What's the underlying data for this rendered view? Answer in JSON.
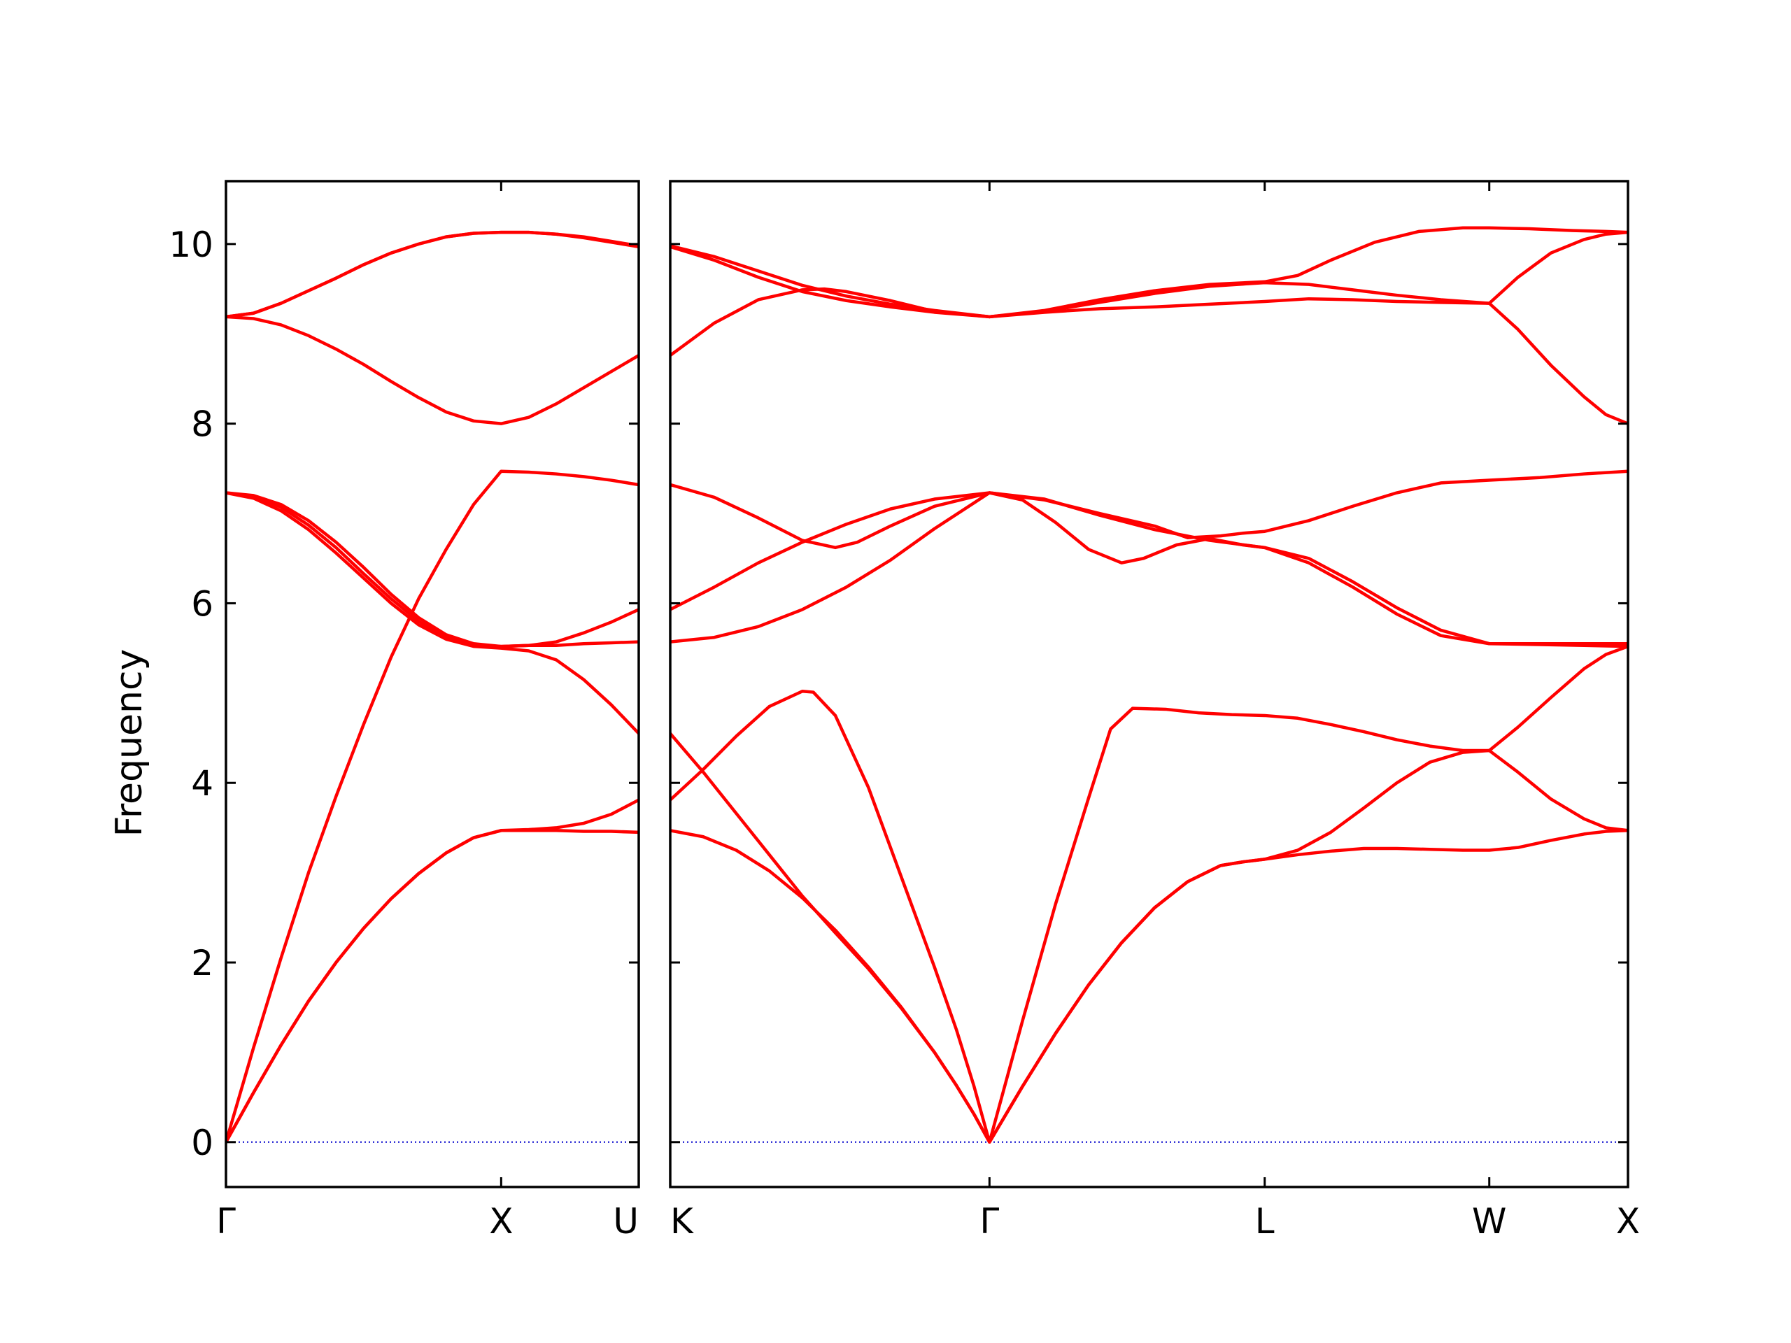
{
  "chart_data": {
    "type": "line",
    "ylabel": "Frequency",
    "ylim": [
      -0.5,
      10.7
    ],
    "yticks": [
      0,
      2,
      4,
      6,
      8,
      10
    ],
    "colors": {
      "bands": "#ff0000",
      "zero_line": "#0000cc",
      "frame": "#000000"
    },
    "grid": false,
    "legend": "none",
    "panels": [
      {
        "name": "Γ-X-U",
        "path_length": 1.5,
        "ticks": [
          {
            "x": 0,
            "label": "Γ"
          },
          {
            "x": 1.0,
            "label": "X"
          },
          {
            "x": 1.5,
            "label": "U"
          }
        ],
        "bands": [
          {
            "x": [
              0,
              0.1,
              0.2,
              0.3,
              0.4,
              0.5,
              0.6,
              0.7,
              0.8,
              0.9,
              1.0,
              1.1,
              1.2,
              1.3,
              1.4,
              1.5
            ],
            "y": [
              0,
              0.55,
              1.08,
              1.57,
              2.0,
              2.38,
              2.71,
              2.99,
              3.22,
              3.39,
              3.47,
              3.48,
              3.5,
              3.55,
              3.65,
              3.81
            ]
          },
          {
            "x": [
              0,
              0.1,
              0.2,
              0.3,
              0.4,
              0.5,
              0.6,
              0.7,
              0.8,
              0.9,
              1.0,
              1.1,
              1.2,
              1.3,
              1.4,
              1.5
            ],
            "y": [
              0,
              0.55,
              1.08,
              1.57,
              2.0,
              2.38,
              2.71,
              2.99,
              3.22,
              3.39,
              3.47,
              3.47,
              3.47,
              3.46,
              3.46,
              3.45
            ]
          },
          {
            "x": [
              0,
              0.1,
              0.2,
              0.3,
              0.4,
              0.5,
              0.6,
              0.7,
              0.8,
              0.9,
              1.0,
              1.1,
              1.2,
              1.3,
              1.4,
              1.5
            ],
            "y": [
              0,
              1.05,
              2.05,
              3.0,
              3.85,
              4.65,
              5.4,
              6.05,
              6.6,
              7.1,
              7.47,
              7.46,
              7.44,
              7.41,
              7.37,
              7.32
            ]
          },
          {
            "x": [
              0,
              0.1,
              0.2,
              0.3,
              0.4,
              0.5,
              0.6,
              0.7,
              0.8,
              0.9,
              1.0,
              1.1,
              1.2,
              1.3,
              1.4,
              1.5
            ],
            "y": [
              7.23,
              7.17,
              7.03,
              6.82,
              6.56,
              6.28,
              6.0,
              5.76,
              5.6,
              5.52,
              5.5,
              5.47,
              5.37,
              5.15,
              4.87,
              4.55
            ]
          },
          {
            "x": [
              0,
              0.1,
              0.2,
              0.3,
              0.4,
              0.5,
              0.6,
              0.7,
              0.8,
              0.9,
              1.0,
              1.1,
              1.2,
              1.3,
              1.4,
              1.5
            ],
            "y": [
              7.23,
              7.19,
              7.07,
              6.87,
              6.62,
              6.33,
              6.05,
              5.8,
              5.62,
              5.53,
              5.52,
              5.53,
              5.53,
              5.55,
              5.56,
              5.57
            ]
          },
          {
            "x": [
              0,
              0.1,
              0.2,
              0.3,
              0.4,
              0.5,
              0.6,
              0.7,
              0.8,
              0.9,
              1.0,
              1.1,
              1.2,
              1.3,
              1.4,
              1.5
            ],
            "y": [
              7.23,
              7.2,
              7.1,
              6.92,
              6.68,
              6.4,
              6.1,
              5.84,
              5.65,
              5.55,
              5.52,
              5.53,
              5.57,
              5.67,
              5.79,
              5.93
            ]
          },
          {
            "x": [
              0,
              0.1,
              0.2,
              0.3,
              0.4,
              0.5,
              0.6,
              0.7,
              0.8,
              0.9,
              1.0,
              1.1,
              1.2,
              1.3,
              1.4,
              1.5
            ],
            "y": [
              9.19,
              9.17,
              9.1,
              8.98,
              8.83,
              8.66,
              8.47,
              8.29,
              8.13,
              8.03,
              8.0,
              8.07,
              8.22,
              8.4,
              8.58,
              8.76
            ]
          },
          {
            "x": [
              0,
              0.1,
              0.2,
              0.3,
              0.4,
              0.5,
              0.6,
              0.7,
              0.8,
              0.9,
              1.0,
              1.1,
              1.2,
              1.3,
              1.4,
              1.5
            ],
            "y": [
              9.19,
              9.23,
              9.34,
              9.48,
              9.62,
              9.77,
              9.9,
              10.0,
              10.08,
              10.12,
              10.13,
              10.13,
              10.11,
              10.07,
              10.02,
              9.97
            ]
          },
          {
            "x": [
              0,
              0.1,
              0.2,
              0.3,
              0.4,
              0.5,
              0.6,
              0.7,
              0.8,
              0.9,
              1.0,
              1.1,
              1.2,
              1.3,
              1.4,
              1.5
            ],
            "y": [
              9.19,
              9.23,
              9.34,
              9.48,
              9.62,
              9.77,
              9.9,
              10.0,
              10.08,
              10.12,
              10.13,
              10.13,
              10.11,
              10.08,
              10.03,
              9.98
            ]
          }
        ]
      },
      {
        "name": "K-Γ-L-W-X",
        "path_length": 4.35,
        "ticks": [
          {
            "x": 0,
            "label": "K"
          },
          {
            "x": 1.45,
            "label": "Γ"
          },
          {
            "x": 2.7,
            "label": "L"
          },
          {
            "x": 3.72,
            "label": "W"
          },
          {
            "x": 4.35,
            "label": "X"
          }
        ],
        "bands": [
          {
            "x": [
              0,
              0.15,
              0.3,
              0.45,
              0.6,
              0.75,
              0.9,
              1.05,
              1.2,
              1.3,
              1.38,
              1.45,
              1.6,
              1.75,
              1.9,
              2.05,
              2.2,
              2.35,
              2.5,
              2.6,
              2.7,
              2.85,
              3.0,
              3.15,
              3.3,
              3.45,
              3.6,
              3.72,
              3.85,
              4.0,
              4.15,
              4.25,
              4.35
            ],
            "y": [
              3.47,
              3.4,
              3.25,
              3.02,
              2.72,
              2.36,
              1.95,
              1.5,
              1.0,
              0.63,
              0.31,
              0,
              0.62,
              1.21,
              1.75,
              2.22,
              2.61,
              2.9,
              3.08,
              3.12,
              3.15,
              3.2,
              3.24,
              3.27,
              3.27,
              3.26,
              3.25,
              3.25,
              3.28,
              3.36,
              3.43,
              3.46,
              3.47
            ]
          },
          {
            "x": [
              0,
              0.15,
              0.3,
              0.45,
              0.6,
              0.75,
              0.9,
              1.05,
              1.2,
              1.3,
              1.38,
              1.45,
              1.6,
              1.75,
              1.9,
              2.05,
              2.2,
              2.35,
              2.5,
              2.6,
              2.7,
              2.85,
              3.0,
              3.15,
              3.3,
              3.45,
              3.6,
              3.72,
              3.85,
              4.0,
              4.15,
              4.25,
              4.35
            ],
            "y": [
              4.55,
              4.12,
              3.66,
              3.2,
              2.74,
              2.33,
              1.93,
              1.49,
              1.0,
              0.63,
              0.31,
              0,
              0.62,
              1.21,
              1.75,
              2.22,
              2.61,
              2.9,
              3.08,
              3.12,
              3.15,
              3.25,
              3.45,
              3.72,
              4.0,
              4.23,
              4.34,
              4.36,
              4.12,
              3.82,
              3.6,
              3.5,
              3.47
            ]
          },
          {
            "x": [
              0,
              0.15,
              0.3,
              0.45,
              0.6,
              0.65,
              0.75,
              0.9,
              1.05,
              1.2,
              1.3,
              1.38,
              1.45,
              1.6,
              1.75,
              1.9,
              2.0,
              2.1,
              2.25,
              2.4,
              2.55,
              2.7,
              2.85,
              3.0,
              3.15,
              3.3,
              3.45,
              3.6,
              3.72,
              3.85,
              4.0,
              4.15,
              4.25,
              4.35
            ],
            "y": [
              3.81,
              4.15,
              4.52,
              4.85,
              5.02,
              5.01,
              4.75,
              3.95,
              2.95,
              1.95,
              1.25,
              0.62,
              0,
              1.35,
              2.65,
              3.83,
              4.6,
              4.83,
              4.82,
              4.78,
              4.76,
              4.75,
              4.72,
              4.65,
              4.57,
              4.48,
              4.41,
              4.36,
              4.36,
              4.62,
              4.95,
              5.27,
              5.43,
              5.52
            ]
          },
          {
            "x": [
              0,
              0.2,
              0.4,
              0.6,
              0.8,
              1.0,
              1.2,
              1.45,
              1.7,
              1.95,
              2.2,
              2.45,
              2.7,
              2.9,
              3.1,
              3.3,
              3.5,
              3.72,
              3.95,
              4.15,
              4.35
            ],
            "y": [
              5.57,
              5.62,
              5.74,
              5.93,
              6.18,
              6.48,
              6.83,
              7.23,
              7.16,
              6.98,
              6.82,
              6.7,
              6.62,
              6.5,
              6.24,
              5.95,
              5.7,
              5.55,
              5.54,
              5.53,
              5.52
            ]
          },
          {
            "x": [
              0,
              0.2,
              0.4,
              0.6,
              0.75,
              0.85,
              1.0,
              1.2,
              1.45,
              1.6,
              1.75,
              1.9,
              2.05,
              2.15,
              2.3,
              2.45,
              2.6,
              2.7,
              2.9,
              3.1,
              3.3,
              3.5,
              3.72,
              3.95,
              4.15,
              4.35
            ],
            "y": [
              7.32,
              7.18,
              6.95,
              6.7,
              6.62,
              6.68,
              6.86,
              7.08,
              7.23,
              7.15,
              6.9,
              6.6,
              6.45,
              6.5,
              6.65,
              6.72,
              6.65,
              6.62,
              6.45,
              6.18,
              5.88,
              5.64,
              5.55,
              5.55,
              5.55,
              5.55
            ]
          },
          {
            "x": [
              0,
              0.2,
              0.4,
              0.6,
              0.8,
              1.0,
              1.2,
              1.45,
              1.7,
              1.95,
              2.2,
              2.35,
              2.5,
              2.6,
              2.7,
              2.9,
              3.1,
              3.3,
              3.5,
              3.72,
              3.95,
              4.15,
              4.35
            ],
            "y": [
              5.93,
              6.18,
              6.45,
              6.68,
              6.88,
              7.05,
              7.16,
              7.23,
              7.15,
              7.0,
              6.86,
              6.73,
              6.75,
              6.78,
              6.8,
              6.92,
              7.08,
              7.23,
              7.34,
              7.37,
              7.4,
              7.44,
              7.47
            ]
          },
          {
            "x": [
              0,
              0.2,
              0.4,
              0.6,
              0.7,
              0.8,
              1.0,
              1.2,
              1.45,
              1.7,
              1.95,
              2.2,
              2.45,
              2.7,
              2.9,
              3.1,
              3.3,
              3.5,
              3.72,
              3.85,
              4.0,
              4.15,
              4.25,
              4.35
            ],
            "y": [
              8.76,
              9.12,
              9.38,
              9.49,
              9.5,
              9.47,
              9.37,
              9.25,
              9.19,
              9.25,
              9.35,
              9.45,
              9.53,
              9.57,
              9.55,
              9.49,
              9.43,
              9.38,
              9.34,
              9.05,
              8.65,
              8.3,
              8.1,
              8.0
            ]
          },
          {
            "x": [
              0,
              0.2,
              0.4,
              0.6,
              0.8,
              1.0,
              1.2,
              1.45,
              1.7,
              1.95,
              2.2,
              2.45,
              2.7,
              2.9,
              3.1,
              3.3,
              3.5,
              3.72,
              3.85,
              4.0,
              4.15,
              4.25,
              4.35
            ],
            "y": [
              9.97,
              9.82,
              9.63,
              9.47,
              9.37,
              9.3,
              9.24,
              9.19,
              9.24,
              9.28,
              9.3,
              9.33,
              9.36,
              9.39,
              9.38,
              9.36,
              9.35,
              9.34,
              9.63,
              9.9,
              10.05,
              10.11,
              10.13
            ]
          },
          {
            "x": [
              0,
              0.2,
              0.4,
              0.6,
              0.8,
              1.0,
              1.2,
              1.45,
              1.7,
              1.95,
              2.2,
              2.45,
              2.7,
              2.85,
              3.0,
              3.2,
              3.4,
              3.6,
              3.72,
              3.9,
              4.1,
              4.25,
              4.35
            ],
            "y": [
              9.98,
              9.86,
              9.7,
              9.54,
              9.42,
              9.33,
              9.26,
              9.19,
              9.26,
              9.38,
              9.48,
              9.55,
              9.58,
              9.65,
              9.82,
              10.02,
              10.14,
              10.18,
              10.18,
              10.17,
              10.15,
              10.14,
              10.13
            ]
          }
        ]
      }
    ]
  }
}
